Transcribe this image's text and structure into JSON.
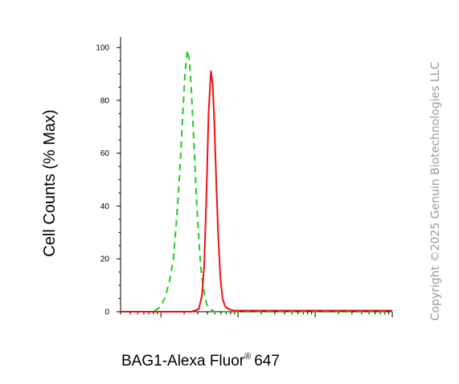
{
  "chart_data": {
    "type": "area",
    "xlabel": "BAG1-Alexa Fluor",
    "xlabel_superscript": "®",
    "xlabel_suffix": "647",
    "ylabel": "Cell Counts (% Max)",
    "xscale": "log",
    "xlim": [
      0.3,
      1000
    ],
    "ylim": [
      0,
      104
    ],
    "yticks": [
      "0",
      "20",
      "40",
      "60",
      "80",
      "100"
    ],
    "ytick_values": [
      0,
      20,
      40,
      60,
      80,
      100
    ],
    "grid": false,
    "series": [
      {
        "color": "#22cc22",
        "line_style": "dashed",
        "points": [
          [
            0.3,
            0
          ],
          [
            0.7,
            0
          ],
          [
            0.85,
            0.5
          ],
          [
            1.0,
            2
          ],
          [
            1.15,
            6
          ],
          [
            1.3,
            12
          ],
          [
            1.45,
            20
          ],
          [
            1.6,
            35
          ],
          [
            1.75,
            52
          ],
          [
            1.9,
            72
          ],
          [
            2.05,
            90
          ],
          [
            2.2,
            99
          ],
          [
            2.35,
            95
          ],
          [
            2.5,
            82
          ],
          [
            2.7,
            62
          ],
          [
            2.9,
            42
          ],
          [
            3.1,
            28
          ],
          [
            3.3,
            16
          ],
          [
            3.6,
            8
          ],
          [
            3.9,
            3
          ],
          [
            4.3,
            1
          ],
          [
            5,
            0
          ],
          [
            1000,
            0
          ]
        ]
      },
      {
        "color": "#ee1111",
        "line_style": "solid",
        "points": [
          [
            0.3,
            0
          ],
          [
            2.5,
            0
          ],
          [
            3.1,
            1
          ],
          [
            3.4,
            6
          ],
          [
            3.65,
            18
          ],
          [
            3.9,
            45
          ],
          [
            4.15,
            75
          ],
          [
            4.45,
            91
          ],
          [
            4.7,
            86
          ],
          [
            4.95,
            70
          ],
          [
            5.25,
            47
          ],
          [
            5.55,
            28
          ],
          [
            5.9,
            13
          ],
          [
            6.3,
            5
          ],
          [
            6.8,
            2
          ],
          [
            7.5,
            1
          ],
          [
            9,
            0.4
          ],
          [
            1000,
            0.4
          ]
        ]
      }
    ]
  },
  "watermark": "Copyright ©2025 Genuin Biotechnologies LLC"
}
